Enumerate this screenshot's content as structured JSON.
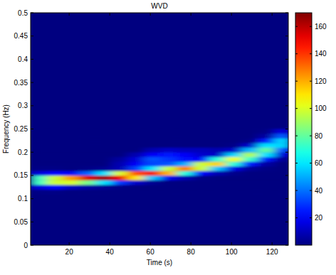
{
  "chart_data": {
    "type": "heatmap",
    "title": "WVD",
    "x_label": "Time (s)",
    "y_label": "Frequency (Hz)",
    "xlim": [
      1,
      128
    ],
    "ylim": [
      0,
      0.5
    ],
    "xticks": [
      20,
      40,
      60,
      80,
      100,
      120
    ],
    "yticks": [
      0,
      0.05,
      0.1,
      0.15,
      0.2,
      0.25,
      0.3,
      0.35,
      0.4,
      0.45,
      0.5
    ],
    "x": [
      5,
      13,
      21,
      29,
      37,
      45,
      53,
      61,
      69,
      77,
      85,
      93,
      101,
      109,
      117,
      125
    ],
    "y": [
      0.105,
      0.115,
      0.125,
      0.135,
      0.145,
      0.155,
      0.165,
      0.175,
      0.185,
      0.195,
      0.205,
      0.215,
      0.225,
      0.235,
      0.245
    ],
    "values": [
      [
        0,
        1,
        15,
        74,
        74,
        15,
        1,
        0,
        0,
        0,
        0,
        0,
        0,
        0,
        0
      ],
      [
        0,
        1,
        21,
        98,
        98,
        21,
        1,
        0,
        0,
        0,
        0,
        0,
        0,
        0,
        0
      ],
      [
        0,
        0,
        11,
        100,
        123,
        20,
        0,
        0,
        0,
        0,
        0,
        0,
        0,
        0,
        0
      ],
      [
        0,
        0,
        6,
        84,
        154,
        37,
        1,
        0,
        0,
        0,
        0,
        0,
        0,
        0,
        0
      ],
      [
        0,
        0,
        3,
        59,
        165,
        59,
        3,
        0,
        0,
        0,
        0,
        0,
        0,
        0,
        0
      ],
      [
        0,
        0,
        1,
        30,
        151,
        100,
        9,
        8,
        5,
        0,
        0,
        0,
        0,
        0,
        0
      ],
      [
        0,
        0,
        0,
        12,
        110,
        136,
        32,
        20,
        15,
        8,
        0,
        0,
        0,
        0,
        0
      ],
      [
        0,
        0,
        0,
        3,
        54,
        150,
        60,
        33,
        35,
        20,
        8,
        0,
        0,
        0,
        0
      ],
      [
        0,
        0,
        0,
        0,
        19,
        119,
        97,
        35,
        30,
        25,
        12,
        0,
        0,
        0,
        0
      ],
      [
        0,
        0,
        0,
        0,
        8,
        69,
        129,
        50,
        24,
        20,
        10,
        0,
        0,
        0,
        0
      ],
      [
        0,
        0,
        0,
        0,
        1,
        21,
        98,
        98,
        21,
        13,
        10,
        0,
        0,
        0,
        0
      ],
      [
        0,
        0,
        0,
        0,
        0,
        8,
        54,
        114,
        70,
        12,
        8,
        0,
        0,
        0,
        0
      ],
      [
        0,
        0,
        0,
        0,
        0,
        2,
        17,
        70,
        104,
        57,
        12,
        1,
        0,
        0,
        0
      ],
      [
        0,
        0,
        0,
        0,
        0,
        0,
        4,
        25,
        73,
        93,
        52,
        13,
        1,
        0,
        0
      ],
      [
        0,
        0,
        0,
        0,
        0,
        0,
        1,
        6,
        25,
        59,
        80,
        59,
        25,
        6,
        1
      ],
      [
        0,
        0,
        0,
        0,
        0,
        0,
        0,
        0,
        4,
        15,
        36,
        57,
        57,
        36,
        15
      ]
    ],
    "colorbar": {
      "range": [
        0,
        170
      ],
      "ticks": [
        20,
        40,
        60,
        80,
        100,
        120,
        140,
        160
      ]
    }
  }
}
